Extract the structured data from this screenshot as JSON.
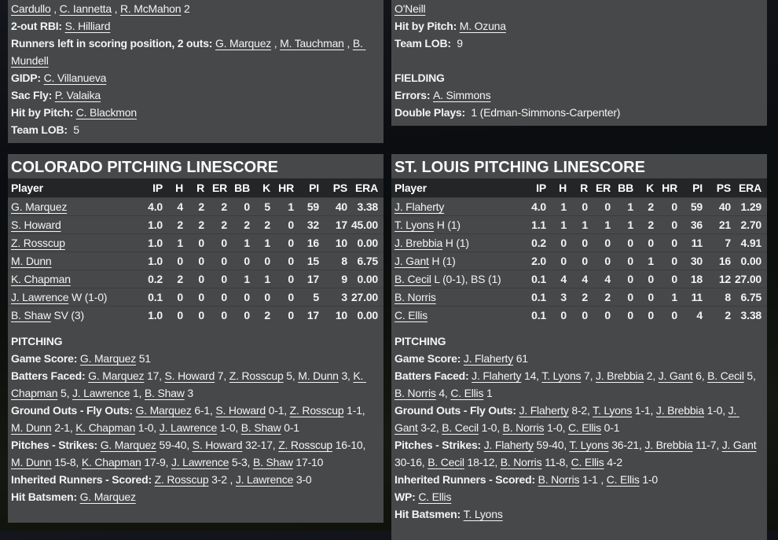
{
  "theme": {
    "panel_bg": "#46484a",
    "table_header_bg": "#232527",
    "row_divider": "#3a3c3e",
    "text_color": "#f4f4f4",
    "title_color": "#ffffff"
  },
  "left_top": {
    "lines": [
      [
        {
          "l": "Cardullo"
        },
        {
          "t": " , "
        },
        {
          "l": "C. Iannetta"
        },
        {
          "t": " , "
        },
        {
          "l": "R. McMahon"
        },
        {
          "t": " 2"
        }
      ],
      [
        {
          "b": "2-out RBI: "
        },
        {
          "l": "S. Hilliard"
        }
      ],
      [
        {
          "b": "Runners left in scoring position, 2 outs: "
        },
        {
          "l": "G. Marquez"
        },
        {
          "t": " , "
        },
        {
          "l": "M. Tauchman"
        },
        {
          "t": " , "
        },
        {
          "l": "B. Mundell"
        }
      ],
      [
        {
          "b": "GIDP: "
        },
        {
          "l": "C. Villanueva"
        }
      ],
      [
        {
          "b": "Sac Fly: "
        },
        {
          "l": "P. Valaika"
        }
      ],
      [
        {
          "b": "Hit by Pitch: "
        },
        {
          "l": "C. Blackmon"
        }
      ],
      [
        {
          "b": "Team LOB: "
        },
        {
          "t": " 5"
        }
      ]
    ]
  },
  "right_top": {
    "lines": [
      [
        {
          "l": "O'Neill"
        }
      ],
      [
        {
          "b": "Hit by Pitch: "
        },
        {
          "l": "M. Ozuna"
        }
      ],
      [
        {
          "b": "Team LOB: "
        },
        {
          "t": " 9"
        }
      ],
      [],
      [
        {
          "b": "FIELDING"
        }
      ],
      [
        {
          "b": "Errors: "
        },
        {
          "l": "A. Simmons"
        }
      ],
      [
        {
          "b": "Double Plays: "
        },
        {
          "t": " 1 (Edman-Simmons-Carpenter)"
        }
      ]
    ]
  },
  "colorado": {
    "title": "COLORADO PITCHING LINESCORE",
    "columns": [
      "Player",
      "IP",
      "H",
      "R",
      "ER",
      "BB",
      "K",
      "HR",
      "PI",
      "PS",
      "ERA"
    ],
    "rows": [
      {
        "name": "G. Marquez",
        "suffix": "",
        "stats": [
          "4.0",
          "4",
          "2",
          "2",
          "0",
          "5",
          "1",
          "59",
          "40",
          "3.38"
        ]
      },
      {
        "name": "S. Howard",
        "suffix": "",
        "stats": [
          "1.0",
          "2",
          "2",
          "2",
          "2",
          "2",
          "0",
          "32",
          "17",
          "45.00"
        ]
      },
      {
        "name": "Z. Rosscup",
        "suffix": "",
        "stats": [
          "1.0",
          "1",
          "0",
          "0",
          "1",
          "1",
          "0",
          "16",
          "10",
          "0.00"
        ]
      },
      {
        "name": "M. Dunn",
        "suffix": "",
        "stats": [
          "1.0",
          "0",
          "0",
          "0",
          "0",
          "0",
          "0",
          "15",
          "8",
          "6.75"
        ]
      },
      {
        "name": "K. Chapman",
        "suffix": "",
        "stats": [
          "0.2",
          "2",
          "0",
          "0",
          "1",
          "1",
          "0",
          "17",
          "9",
          "0.00"
        ]
      },
      {
        "name": "J. Lawrence",
        "suffix": " W (1-0)",
        "stats": [
          "0.1",
          "0",
          "0",
          "0",
          "0",
          "0",
          "0",
          "5",
          "3",
          "27.00"
        ]
      },
      {
        "name": "B. Shaw",
        "suffix": " SV (3)",
        "stats": [
          "1.0",
          "0",
          "0",
          "0",
          "0",
          "2",
          "0",
          "17",
          "10",
          "0.00"
        ]
      }
    ],
    "lines": [
      [
        {
          "b": "PITCHING"
        }
      ],
      [
        {
          "b": "Game Score: "
        },
        {
          "l": "G. Marquez"
        },
        {
          "t": " 51"
        }
      ],
      [
        {
          "b": "Batters Faced: "
        },
        {
          "l": "G. Marquez"
        },
        {
          "t": " 17, "
        },
        {
          "l": "S. Howard"
        },
        {
          "t": " 7, "
        },
        {
          "l": "Z. Rosscup"
        },
        {
          "t": " 5, "
        },
        {
          "l": "M. Dunn"
        },
        {
          "t": " 3, "
        },
        {
          "l": "K. Chapman"
        },
        {
          "t": " 5, "
        },
        {
          "l": "J. Lawrence"
        },
        {
          "t": " 1, "
        },
        {
          "l": "B. Shaw"
        },
        {
          "t": " 3"
        }
      ],
      [
        {
          "b": "Ground Outs - Fly Outs: "
        },
        {
          "l": "G. Marquez"
        },
        {
          "t": " 6-1, "
        },
        {
          "l": "S. Howard"
        },
        {
          "t": " 0-1, "
        },
        {
          "l": "Z. Rosscup"
        },
        {
          "t": " 1-1, "
        },
        {
          "l": "M. Dunn"
        },
        {
          "t": " 2-1, "
        },
        {
          "l": "K. Chapman"
        },
        {
          "t": " 1-0, "
        },
        {
          "l": "J. Lawrence"
        },
        {
          "t": " 1-0, "
        },
        {
          "l": "B. Shaw"
        },
        {
          "t": " 0-1"
        }
      ],
      [
        {
          "b": "Pitches - Strikes: "
        },
        {
          "l": "G. Marquez"
        },
        {
          "t": " 59-40, "
        },
        {
          "l": "S. Howard"
        },
        {
          "t": " 32-17, "
        },
        {
          "l": "Z. Rosscup"
        },
        {
          "t": " 16-10, "
        },
        {
          "l": "M. Dunn"
        },
        {
          "t": " 15-8, "
        },
        {
          "l": "K. Chapman"
        },
        {
          "t": " 17-9, "
        },
        {
          "l": "J. Lawrence"
        },
        {
          "t": " 5-3, "
        },
        {
          "l": "B. Shaw"
        },
        {
          "t": " 17-10"
        }
      ],
      [
        {
          "b": "Inherited Runners - Scored: "
        },
        {
          "l": "Z. Rosscup"
        },
        {
          "t": " 3-2 , "
        },
        {
          "l": "J. Lawrence"
        },
        {
          "t": " 3-0"
        }
      ],
      [
        {
          "b": "Hit Batsmen: "
        },
        {
          "l": "G. Marquez"
        }
      ]
    ]
  },
  "stlouis": {
    "title": "ST. LOUIS PITCHING LINESCORE",
    "columns": [
      "Player",
      "IP",
      "H",
      "R",
      "ER",
      "BB",
      "K",
      "HR",
      "PI",
      "PS",
      "ERA"
    ],
    "rows": [
      {
        "name": "J. Flaherty",
        "suffix": "",
        "stats": [
          "4.0",
          "1",
          "0",
          "0",
          "1",
          "2",
          "0",
          "59",
          "40",
          "1.29"
        ]
      },
      {
        "name": "T. Lyons",
        "suffix": " H (1)",
        "stats": [
          "1.1",
          "1",
          "1",
          "1",
          "1",
          "2",
          "0",
          "36",
          "21",
          "2.70"
        ]
      },
      {
        "name": "J. Brebbia",
        "suffix": " H (1)",
        "stats": [
          "0.2",
          "0",
          "0",
          "0",
          "0",
          "0",
          "0",
          "11",
          "7",
          "4.91"
        ]
      },
      {
        "name": "J. Gant",
        "suffix": " H (1)",
        "stats": [
          "2.0",
          "0",
          "0",
          "0",
          "0",
          "1",
          "0",
          "30",
          "16",
          "0.00"
        ]
      },
      {
        "name": "B. Cecil",
        "suffix": " L (0-1), BS (1)",
        "stats": [
          "0.1",
          "4",
          "4",
          "4",
          "0",
          "0",
          "0",
          "18",
          "12",
          "27.00"
        ]
      },
      {
        "name": "B. Norris",
        "suffix": "",
        "stats": [
          "0.1",
          "3",
          "2",
          "2",
          "0",
          "0",
          "1",
          "11",
          "8",
          "6.75"
        ]
      },
      {
        "name": "C. Ellis",
        "suffix": "",
        "stats": [
          "0.1",
          "0",
          "0",
          "0",
          "0",
          "0",
          "0",
          "4",
          "2",
          "3.38"
        ]
      }
    ],
    "lines": [
      [
        {
          "b": "PITCHING"
        }
      ],
      [
        {
          "b": "Game Score: "
        },
        {
          "l": "J. Flaherty"
        },
        {
          "t": " 61"
        }
      ],
      [
        {
          "b": "Batters Faced: "
        },
        {
          "l": "J. Flaherty"
        },
        {
          "t": " 14, "
        },
        {
          "l": "T. Lyons"
        },
        {
          "t": " 7, "
        },
        {
          "l": "J. Brebbia"
        },
        {
          "t": " 2, "
        },
        {
          "l": "J. Gant"
        },
        {
          "t": " 6, "
        },
        {
          "l": "B. Cecil"
        },
        {
          "t": " 5, "
        },
        {
          "l": "B. Norris"
        },
        {
          "t": " 4, "
        },
        {
          "l": "C. Ellis"
        },
        {
          "t": " 1"
        }
      ],
      [
        {
          "b": "Ground Outs - Fly Outs: "
        },
        {
          "l": "J. Flaherty"
        },
        {
          "t": " 8-2, "
        },
        {
          "l": "T. Lyons"
        },
        {
          "t": " 1-1, "
        },
        {
          "l": "J. Brebbia"
        },
        {
          "t": " 1-0, "
        },
        {
          "l": "J. Gant"
        },
        {
          "t": " 3-2, "
        },
        {
          "l": "B. Cecil"
        },
        {
          "t": " 1-0, "
        },
        {
          "l": "B. Norris"
        },
        {
          "t": " 1-0, "
        },
        {
          "l": "C. Ellis"
        },
        {
          "t": " 0-1"
        }
      ],
      [
        {
          "b": "Pitches - Strikes: "
        },
        {
          "l": "J. Flaherty"
        },
        {
          "t": " 59-40, "
        },
        {
          "l": "T. Lyons"
        },
        {
          "t": " 36-21, "
        },
        {
          "l": "J. Brebbia"
        },
        {
          "t": " 11-7, "
        },
        {
          "l": "J. Gant"
        },
        {
          "t": " 30-16, "
        },
        {
          "l": "B. Cecil"
        },
        {
          "t": " 18-12, "
        },
        {
          "l": "B. Norris"
        },
        {
          "t": " 11-8, "
        },
        {
          "l": "C. Ellis"
        },
        {
          "t": " 4-2"
        }
      ],
      [
        {
          "b": "Inherited Runners - Scored: "
        },
        {
          "l": "B. Norris"
        },
        {
          "t": " 1-1 , "
        },
        {
          "l": "C. Ellis"
        },
        {
          "t": " 1-0"
        }
      ],
      [
        {
          "b": "WP: "
        },
        {
          "l": "C. Ellis"
        }
      ],
      [
        {
          "b": "Hit Batsmen: "
        },
        {
          "l": "T. Lyons"
        }
      ]
    ]
  }
}
